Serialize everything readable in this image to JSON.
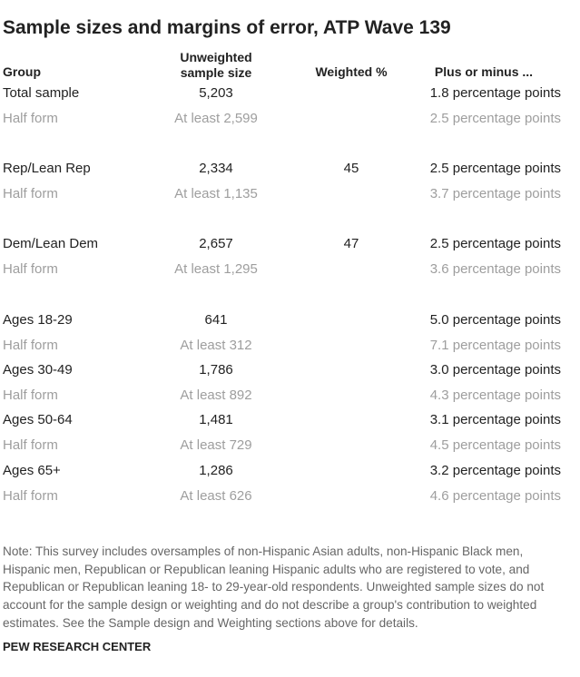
{
  "header": {
    "title": "Sample sizes and margins of error, ATP Wave 139"
  },
  "table": {
    "columns": [
      "Group",
      "Unweighted sample size",
      "Weighted %",
      "Plus or minus ..."
    ],
    "groups": [
      {
        "main": {
          "group": "Total sample",
          "n": "5,203",
          "moe": "1.8 percentage points"
        },
        "half": {
          "group": "Half form",
          "n": "At least 2,599",
          "moe": "2.5 percentage points"
        }
      },
      {
        "main": {
          "group": "Rep/Lean Rep",
          "n": "2,334",
          "weighted": "45",
          "moe": "2.5 percentage points"
        },
        "half": {
          "group": "Half form",
          "n": "At least 1,135",
          "moe": "3.7 percentage points"
        }
      },
      {
        "main": {
          "group": "Dem/Lean Dem",
          "n": "2,657",
          "weighted": "47",
          "moe": "2.5 percentage points"
        },
        "half": {
          "group": "Half form",
          "n": "At least 1,295",
          "moe": "3.6 percentage points"
        }
      },
      {
        "main": {
          "group": "Ages 18-29",
          "n": "641",
          "moe": "5.0 percentage points"
        },
        "half": {
          "group": "Half form",
          "n": "At least 312",
          "moe": "7.1 percentage points"
        }
      },
      {
        "main": {
          "group": "Ages 30-49",
          "n": "1,786",
          "moe": "3.0 percentage points"
        },
        "half": {
          "group": "Half form",
          "n": "At least 892",
          "moe": "4.3 percentage points"
        }
      },
      {
        "main": {
          "group": "Ages 50-64",
          "n": "1,481",
          "moe": "3.1 percentage points"
        },
        "half": {
          "group": "Half form",
          "n": "At least 729",
          "moe": "4.5 percentage points"
        }
      },
      {
        "main": {
          "group": "Ages 65+",
          "n": "1,286",
          "moe": "3.2 percentage points"
        },
        "half": {
          "group": "Half form",
          "n": "At least 626",
          "moe": "4.6 percentage points"
        }
      }
    ]
  },
  "footer": {
    "note": "Note: This survey includes oversamples of non-Hispanic Asian adults, non-Hispanic Black men, Hispanic men, Republican or Republican leaning Hispanic adults who are registered to vote, and Republican or Republican leaning 18- to 29-year-old respondents. Unweighted sample sizes do not account for the sample design or weighting and do not describe a group's contribution to weighted estimates. See the Sample design and Weighting sections above for details.",
    "source": "PEW RESEARCH CENTER"
  }
}
